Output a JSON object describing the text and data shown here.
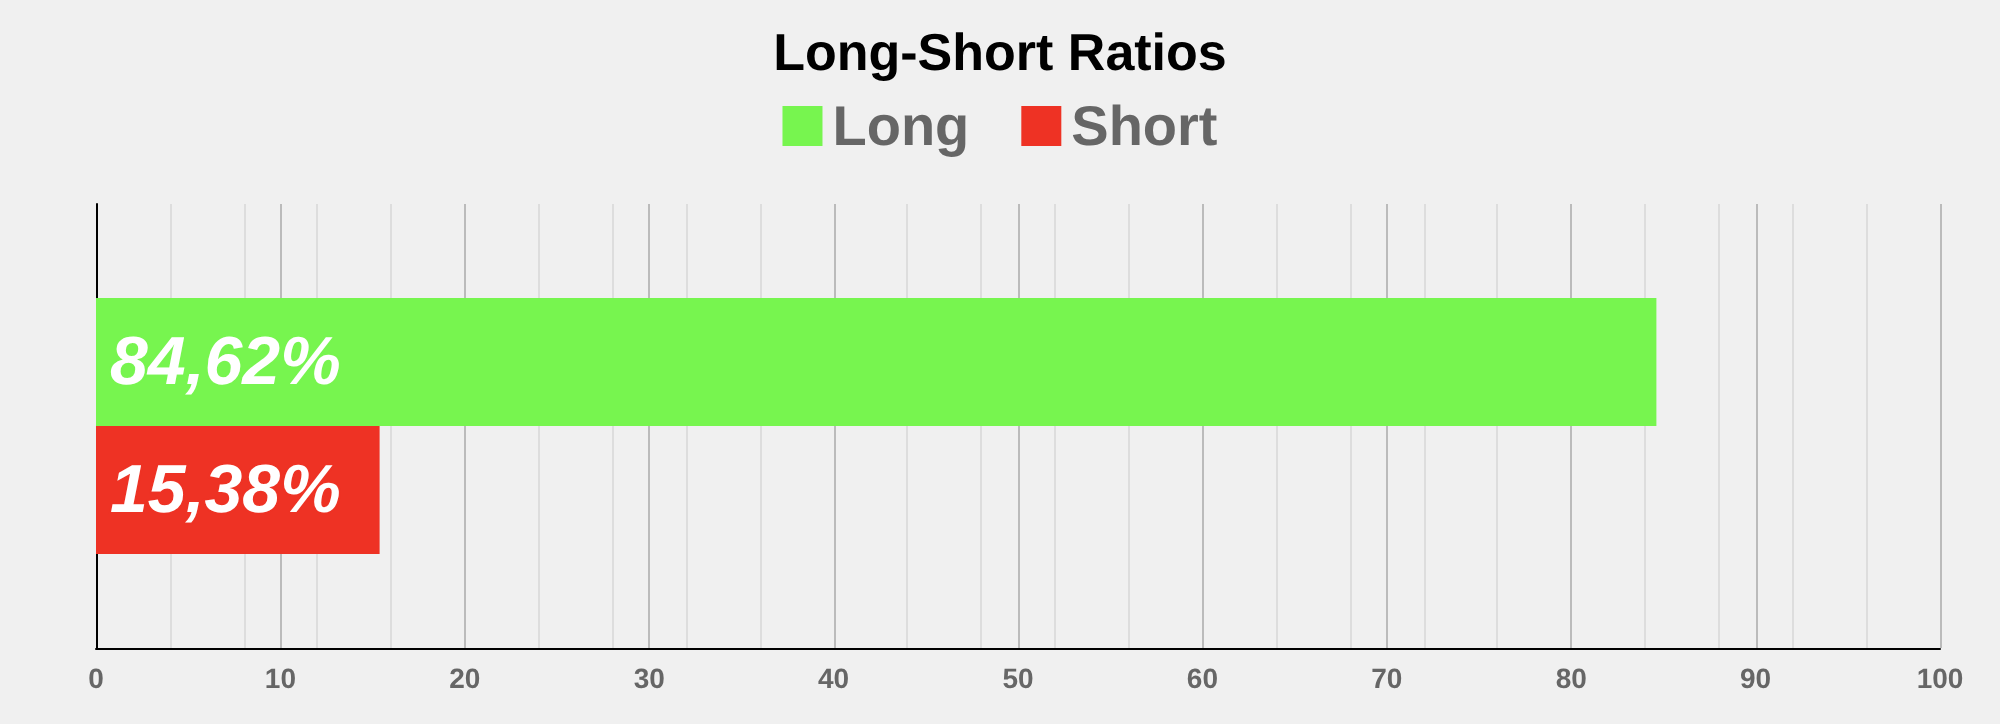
{
  "chart_data": {
    "type": "bar",
    "title": "Long-Short Ratios",
    "orientation": "horizontal",
    "categories": [
      null
    ],
    "series": [
      {
        "name": "Long",
        "color": "#77f54f",
        "values": [
          84.62
        ],
        "value_labels": [
          "84,62%"
        ]
      },
      {
        "name": "Short",
        "color": "#ee3224",
        "values": [
          15.38
        ],
        "value_labels": [
          "15,38%"
        ]
      }
    ],
    "xlim": [
      0,
      100
    ],
    "xticks": [
      0,
      10,
      20,
      30,
      40,
      50,
      60,
      70,
      80,
      90,
      100
    ],
    "grid": "x",
    "legend": "top"
  }
}
